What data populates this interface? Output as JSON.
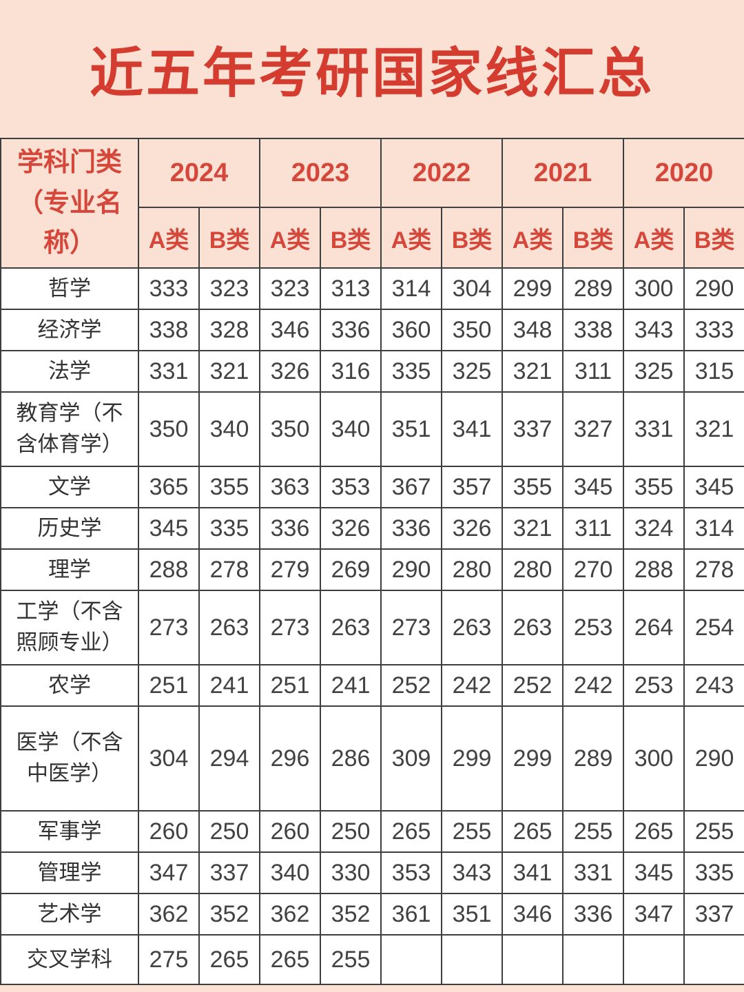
{
  "title": "近五年考研国家线汇总",
  "chart_data": {
    "type": "table",
    "title": "近五年考研国家线汇总",
    "corner_header_line1": "学科门类",
    "corner_header_line2": "（专业名称）",
    "years": [
      "2024",
      "2023",
      "2022",
      "2021",
      "2020"
    ],
    "subcolumns": [
      "A类",
      "B类"
    ],
    "rows": [
      {
        "label": "哲学",
        "values": [
          "333",
          "323",
          "323",
          "313",
          "314",
          "304",
          "299",
          "289",
          "300",
          "290"
        ]
      },
      {
        "label": "经济学",
        "values": [
          "338",
          "328",
          "346",
          "336",
          "360",
          "350",
          "348",
          "338",
          "343",
          "333"
        ]
      },
      {
        "label": "法学",
        "values": [
          "331",
          "321",
          "326",
          "316",
          "335",
          "325",
          "321",
          "311",
          "325",
          "315"
        ]
      },
      {
        "label": "教育学（不含体育学）",
        "values": [
          "350",
          "340",
          "350",
          "340",
          "351",
          "341",
          "337",
          "327",
          "331",
          "321"
        ]
      },
      {
        "label": "文学",
        "values": [
          "365",
          "355",
          "363",
          "353",
          "367",
          "357",
          "355",
          "345",
          "355",
          "345"
        ]
      },
      {
        "label": "历史学",
        "values": [
          "345",
          "335",
          "336",
          "326",
          "336",
          "326",
          "321",
          "311",
          "324",
          "314"
        ]
      },
      {
        "label": "理学",
        "values": [
          "288",
          "278",
          "279",
          "269",
          "290",
          "280",
          "280",
          "270",
          "288",
          "278"
        ]
      },
      {
        "label": "工学（不含照顾专业）",
        "values": [
          "273",
          "263",
          "273",
          "263",
          "273",
          "263",
          "263",
          "253",
          "264",
          "254"
        ]
      },
      {
        "label": "农学",
        "values": [
          "251",
          "241",
          "251",
          "241",
          "252",
          "242",
          "252",
          "242",
          "253",
          "243"
        ]
      },
      {
        "label": "医学（不含中医学）",
        "values": [
          "304",
          "294",
          "296",
          "286",
          "309",
          "299",
          "299",
          "289",
          "300",
          "290"
        ]
      },
      {
        "label": "军事学",
        "values": [
          "260",
          "250",
          "260",
          "250",
          "265",
          "255",
          "265",
          "255",
          "265",
          "255"
        ]
      },
      {
        "label": "管理学",
        "values": [
          "347",
          "337",
          "340",
          "330",
          "353",
          "343",
          "341",
          "331",
          "345",
          "335"
        ]
      },
      {
        "label": "艺术学",
        "values": [
          "362",
          "352",
          "362",
          "352",
          "361",
          "351",
          "346",
          "336",
          "347",
          "337"
        ]
      },
      {
        "label": "交叉学科",
        "values": [
          "275",
          "265",
          "265",
          "255",
          "",
          "",
          "",
          "",
          "",
          ""
        ]
      }
    ]
  },
  "colors": {
    "background_peach": "#fbe1d3",
    "title_red": "#d43c30",
    "header_red": "#d5473a",
    "body_text": "#424242",
    "grid_border": "#3e3e3e",
    "body_background": "#ffffff"
  }
}
